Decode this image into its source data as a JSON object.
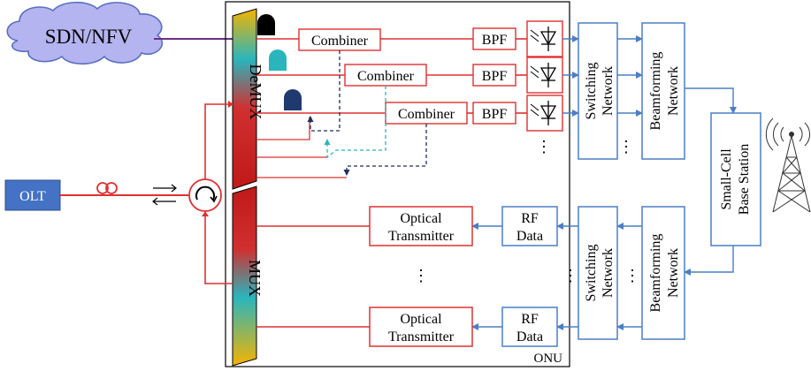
{
  "labels": {
    "sdn_nfv": "SDN/NFV",
    "olt": "OLT",
    "demux": "DeMUX",
    "mux": "MUX",
    "onu": "ONU",
    "combiner_1": "Combiner",
    "combiner_2": "Combiner",
    "combiner_3": "Combiner",
    "bpf_1": "BPF",
    "bpf_2": "BPF",
    "bpf_3": "BPF",
    "ellipsis_pd": "⋮",
    "ellipsis_tx": "⋮",
    "ellipsis_sw_rx": "⋮",
    "ellipsis_sw_tx_left": "⋮",
    "ellipsis_bf_tx_left": "⋮",
    "switching_network_rx_l1": "Switching",
    "switching_network_rx_l2": "Network",
    "beamforming_network_rx_l1": "Beamforming",
    "beamforming_network_rx_l2": "Network",
    "small_cell_l1": "Small-Cell",
    "small_cell_l2": "Base Station",
    "switching_network_tx_l1": "Switching",
    "switching_network_tx_l2": "Network",
    "beamforming_network_tx_l1": "Beamforming",
    "beamforming_network_tx_l2": "Network",
    "optical_tx_1_l1": "Optical",
    "optical_tx_1_l2": "Transmitter",
    "optical_tx_2_l1": "Optical",
    "optical_tx_2_l2": "Transmitter",
    "rf_data_1_l1": "RF",
    "rf_data_1_l2": "Data",
    "rf_data_2_l1": "RF",
    "rf_data_2_l2": "Data"
  },
  "colors": {
    "fiber": "#e03030",
    "rf_link": "#4a7fc8",
    "olt_fill": "#4472c4",
    "cloud_fill": "#b4b4f0",
    "laser_1": "#000000",
    "laser_2": "#2ab5bd",
    "laser_3": "#1f3a6e"
  }
}
